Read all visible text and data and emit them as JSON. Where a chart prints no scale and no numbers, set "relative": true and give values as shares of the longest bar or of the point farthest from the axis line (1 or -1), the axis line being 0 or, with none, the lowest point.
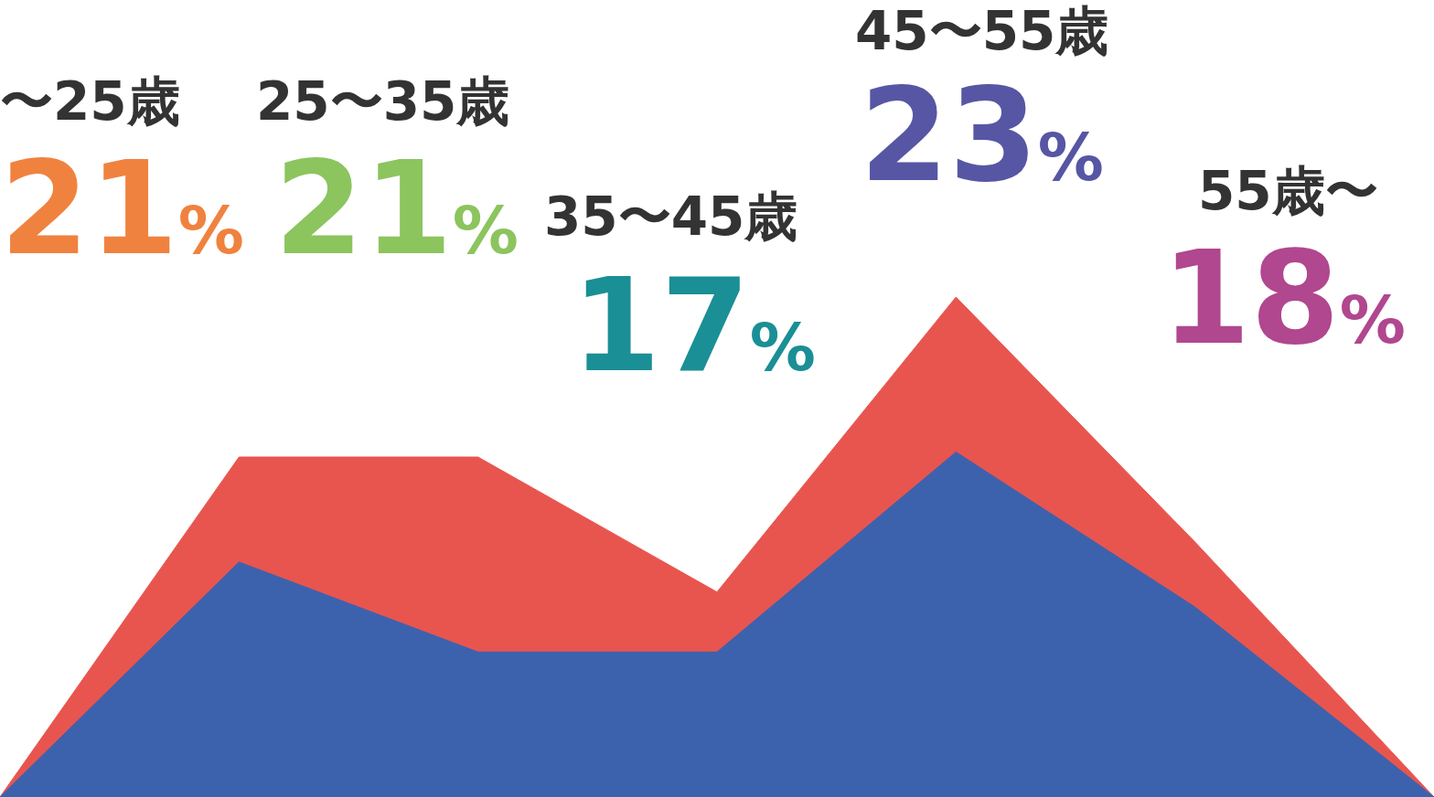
{
  "chart_data": {
    "type": "area",
    "relative": true,
    "categories": [
      null,
      null,
      null,
      null,
      null,
      null,
      null
    ],
    "series": [
      {
        "color": "#e8554f",
        "values": [
          0,
          0.68,
          0.68,
          0.41,
          1,
          0.51,
          0
        ]
      },
      {
        "color": "#3d62ad",
        "values": [
          0,
          0.47,
          0.29,
          0.29,
          0.69,
          0.38,
          0
        ]
      }
    ],
    "annotations": [
      "〜25歳",
      "21%",
      "25〜35歳",
      "21%",
      "35〜45歳",
      "17%",
      "45〜55歳",
      "23%",
      "55歳〜",
      "18%"
    ]
  }
}
